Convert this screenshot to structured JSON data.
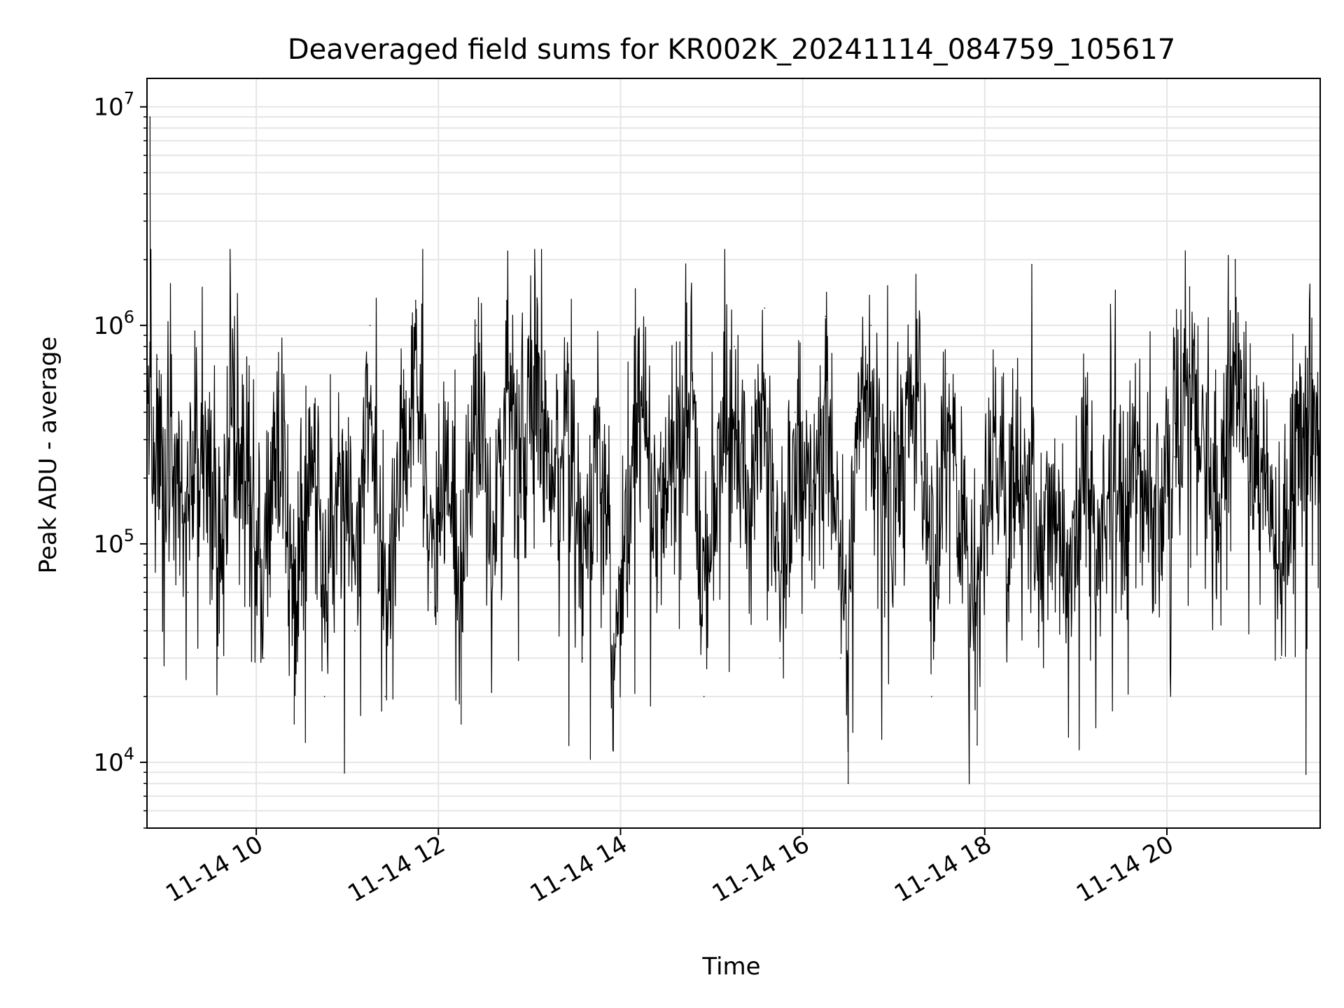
{
  "chart_data": {
    "type": "line",
    "title": "Deaveraged field sums for KR002K_20241114_084759_105617",
    "xlabel": "Time",
    "ylabel": "Peak ADU - average",
    "yscale": "log",
    "ylim": [
      5000,
      13500000
    ],
    "xlim": [
      "2024-11-14 08:48",
      "2024-11-14 21:41"
    ],
    "x_ticks": [
      "11-14 10",
      "11-14 12",
      "11-14 14",
      "11-14 16",
      "11-14 18",
      "11-14 20"
    ],
    "y_ticks": [
      {
        "base": "10",
        "exp": "4"
      },
      {
        "base": "10",
        "exp": "5"
      },
      {
        "base": "10",
        "exp": "6"
      },
      {
        "base": "10",
        "exp": "7"
      }
    ],
    "grid": true,
    "line_color": "#000000",
    "grid_color": "#e6e6e6",
    "series": [
      {
        "name": "",
        "x": [
          "2024-11-14 08:48",
          "2024-11-14 08:49",
          "2024-11-14 08:50",
          "2024-11-14 08:51",
          "2024-11-14 08:53",
          "2024-11-14 08:55",
          "2024-11-14 08:58",
          "2024-11-14 09:05",
          "2024-11-14 09:15",
          "2024-11-14 09:25",
          "2024-11-14 09:35",
          "2024-11-14 09:45",
          "2024-11-14 09:55",
          "2024-11-14 10:05",
          "2024-11-14 10:15",
          "2024-11-14 10:25",
          "2024-11-14 10:35",
          "2024-11-14 10:45",
          "2024-11-14 10:55",
          "2024-11-14 11:05",
          "2024-11-14 11:15",
          "2024-11-14 11:25",
          "2024-11-14 11:35",
          "2024-11-14 11:45",
          "2024-11-14 11:55",
          "2024-11-14 12:05",
          "2024-11-14 12:15",
          "2024-11-14 12:25",
          "2024-11-14 12:35",
          "2024-11-14 12:45",
          "2024-11-14 12:55",
          "2024-11-14 13:05",
          "2024-11-14 13:15",
          "2024-11-14 13:25",
          "2024-11-14 13:35",
          "2024-11-14 13:45",
          "2024-11-14 13:55",
          "2024-11-14 14:05",
          "2024-11-14 14:15",
          "2024-11-14 14:25",
          "2024-11-14 14:35",
          "2024-11-14 14:45",
          "2024-11-14 14:55",
          "2024-11-14 15:05",
          "2024-11-14 15:15",
          "2024-11-14 15:25",
          "2024-11-14 15:35",
          "2024-11-14 15:45",
          "2024-11-14 15:55",
          "2024-11-14 16:05",
          "2024-11-14 16:15",
          "2024-11-14 16:25",
          "2024-11-14 16:30",
          "2024-11-14 16:35",
          "2024-11-14 16:45",
          "2024-11-14 16:55",
          "2024-11-14 17:05",
          "2024-11-14 17:15",
          "2024-11-14 17:25",
          "2024-11-14 17:35",
          "2024-11-14 17:45",
          "2024-11-14 17:55",
          "2024-11-14 18:05",
          "2024-11-14 18:15",
          "2024-11-14 18:25",
          "2024-11-14 18:35",
          "2024-11-14 18:45",
          "2024-11-14 18:55",
          "2024-11-14 19:05",
          "2024-11-14 19:15",
          "2024-11-14 19:25",
          "2024-11-14 19:35",
          "2024-11-14 19:45",
          "2024-11-14 19:55",
          "2024-11-14 20:05",
          "2024-11-14 20:15",
          "2024-11-14 20:25",
          "2024-11-14 20:35",
          "2024-11-14 20:45",
          "2024-11-14 20:55",
          "2024-11-14 21:05",
          "2024-11-14 21:15",
          "2024-11-14 21:25",
          "2024-11-14 21:35",
          "2024-11-14 21:41"
        ],
        "values": [
          1500000,
          300000,
          9000000,
          400000,
          200000,
          700000,
          150000,
          400000,
          60000,
          300000,
          30000,
          400000,
          150000,
          30000,
          500000,
          15000,
          400000,
          20000,
          200000,
          40000,
          1000000,
          20000,
          300000,
          1300000,
          60000,
          200000,
          15000,
          1000000,
          40000,
          1300000,
          200000,
          1300000,
          100000,
          400000,
          30000,
          600000,
          12000,
          100000,
          900000,
          60000,
          200000,
          900000,
          20000,
          300000,
          800000,
          100000,
          1200000,
          30000,
          400000,
          150000,
          1100000,
          30000,
          8000,
          400000,
          1000000,
          60000,
          300000,
          1000000,
          20000,
          600000,
          90000,
          12000,
          300000,
          70000,
          200000,
          40000,
          150000,
          20000,
          200000,
          50000,
          250000,
          80000,
          300000,
          100000,
          250000,
          1500000,
          200000,
          100000,
          2000000,
          300000,
          150000,
          30000,
          300000,
          600000,
          500000
        ]
      }
    ]
  }
}
